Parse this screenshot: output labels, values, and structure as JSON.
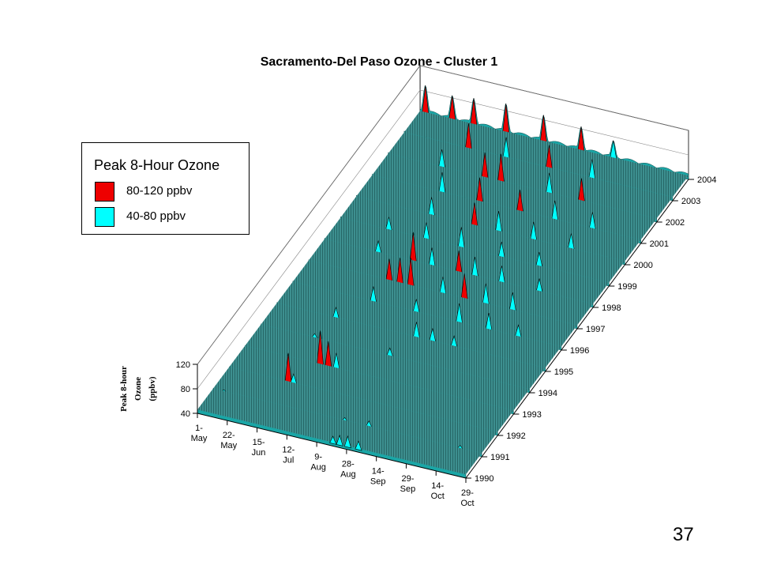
{
  "chart_data": {
    "type": "area",
    "title": "Sacramento-Del Paso Ozone - Cluster 1",
    "xlabel": "",
    "ylabel": "",
    "zlabel": [
      "Peak 8-hour",
      "Ozone",
      "(ppbv)"
    ],
    "x_ticks": [
      [
        "1-",
        "May"
      ],
      [
        "22-",
        "May"
      ],
      [
        "15-",
        "Jun"
      ],
      [
        "12-",
        "Jul"
      ],
      [
        "9-",
        "Aug"
      ],
      [
        "28-",
        "Aug"
      ],
      [
        "14-",
        "Sep"
      ],
      [
        "29-",
        "Sep"
      ],
      [
        "14-",
        "Oct"
      ],
      [
        "29-",
        "Oct"
      ]
    ],
    "y_ticks": [
      "1990",
      "1991",
      "1992",
      "1993",
      "1994",
      "1995",
      "1996",
      "1997",
      "1998",
      "1999",
      "2000",
      "2001",
      "2002",
      "2003",
      "2004"
    ],
    "z_ticks": [
      40,
      80,
      120
    ],
    "zlim": [
      40,
      120
    ],
    "legend": {
      "title": "Peak 8-Hour Ozone",
      "placement": "top-left",
      "items": [
        {
          "label": "80-120 ppbv",
          "color": "#ee0000"
        },
        {
          "label": "40-80 ppbv",
          "color": "#00ffff"
        }
      ]
    },
    "series": [
      {
        "year": "1990",
        "peaks": [
          [
            0.505,
            56
          ],
          [
            0.53,
            60
          ],
          [
            0.56,
            62
          ],
          [
            0.6,
            58
          ]
        ]
      },
      {
        "year": "1991",
        "peaks": [
          [
            0.04,
            48
          ],
          [
            0.49,
            50
          ],
          [
            0.58,
            54
          ],
          [
            0.92,
            50
          ]
        ]
      },
      {
        "year": "1992",
        "peaks": [
          [
            0.22,
            92
          ],
          [
            0.24,
            60
          ]
        ]
      },
      {
        "year": "1993",
        "peaks": [
          [
            0.28,
            100
          ],
          [
            0.31,
            86
          ],
          [
            0.34,
            70
          ]
        ]
      },
      {
        "year": "1994",
        "peaks": [
          [
            0.2,
            52
          ],
          [
            0.48,
            58
          ]
        ]
      },
      {
        "year": "1995",
        "peaks": [
          [
            0.22,
            62
          ],
          [
            0.52,
            70
          ],
          [
            0.58,
            66
          ],
          [
            0.66,
            62
          ]
        ]
      },
      {
        "year": "1996",
        "peaks": [
          [
            0.3,
            70
          ],
          [
            0.46,
            66
          ],
          [
            0.62,
            76
          ],
          [
            0.73,
            72
          ],
          [
            0.84,
            64
          ]
        ]
      },
      {
        "year": "1997",
        "peaks": [
          [
            0.3,
            80
          ],
          [
            0.34,
            86
          ],
          [
            0.38,
            90
          ],
          [
            0.5,
            72
          ],
          [
            0.58,
            86
          ],
          [
            0.66,
            78
          ],
          [
            0.76,
            74
          ]
        ]
      },
      {
        "year": "1998",
        "peaks": [
          [
            0.2,
            64
          ],
          [
            0.33,
            92
          ],
          [
            0.4,
            74
          ],
          [
            0.5,
            80
          ],
          [
            0.56,
            76
          ],
          [
            0.66,
            72
          ],
          [
            0.8,
            66
          ]
        ]
      },
      {
        "year": "1999",
        "peaks": [
          [
            0.18,
            66
          ],
          [
            0.32,
            72
          ],
          [
            0.45,
            78
          ],
          [
            0.6,
            70
          ],
          [
            0.74,
            68
          ]
        ]
      },
      {
        "year": "2000",
        "peaks": [
          [
            0.28,
            74
          ],
          [
            0.44,
            82
          ],
          [
            0.53,
            78
          ],
          [
            0.66,
            74
          ],
          [
            0.8,
            70
          ]
        ]
      },
      {
        "year": "2001",
        "peaks": [
          [
            0.26,
            78
          ],
          [
            0.4,
            84
          ],
          [
            0.55,
            80
          ],
          [
            0.68,
            76
          ],
          [
            0.82,
            72
          ]
        ]
      },
      {
        "year": "2002",
        "peaks": [
          [
            0.2,
            74
          ],
          [
            0.36,
            86
          ],
          [
            0.42,
            90
          ],
          [
            0.6,
            78
          ],
          [
            0.72,
            82
          ]
        ]
      },
      {
        "year": "2003",
        "peaks": [
          [
            0.24,
            86
          ],
          [
            0.38,
            78
          ],
          [
            0.54,
            82
          ],
          [
            0.7,
            76
          ]
        ]
      },
      {
        "year": "2004",
        "peaks": [
          [
            0.02,
            90
          ],
          [
            0.12,
            84
          ],
          [
            0.2,
            88
          ],
          [
            0.32,
            92
          ],
          [
            0.46,
            88
          ],
          [
            0.6,
            84
          ],
          [
            0.72,
            74
          ]
        ]
      }
    ]
  },
  "page_number": "37"
}
